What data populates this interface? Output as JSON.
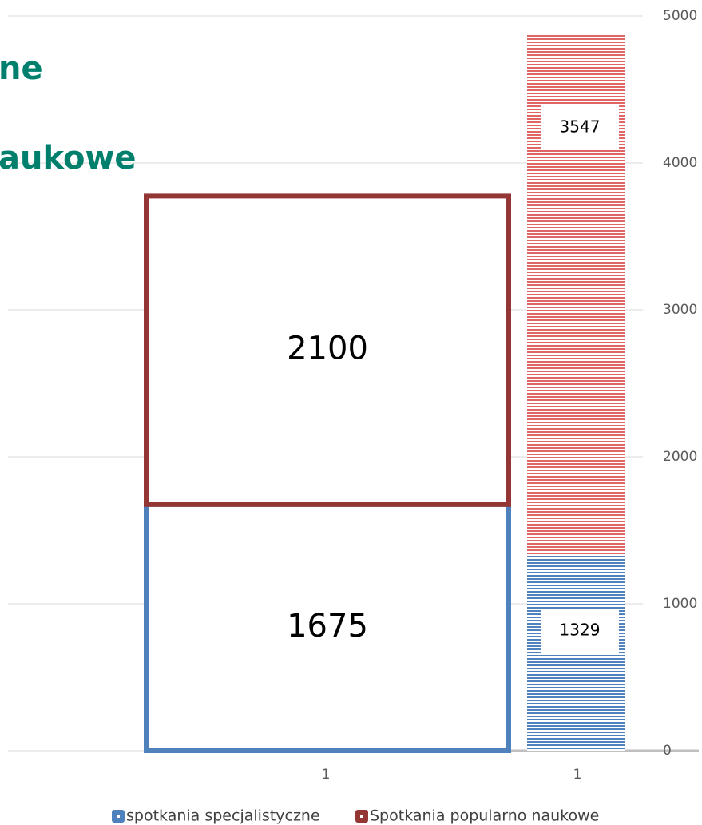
{
  "chart_data": [
    {
      "type": "bar",
      "style": "outline",
      "stacked": true,
      "title": [
        "ne",
        "aukowe"
      ],
      "categories": [
        "1"
      ],
      "series": [
        {
          "name": "spotkania specjalistyczne",
          "color": "#4f81bd",
          "values": [
            1675
          ]
        },
        {
          "name": "Spotkania popularno naukowe",
          "color": "#943634",
          "values": [
            2100
          ]
        }
      ],
      "ylim": [
        0,
        5000
      ],
      "legend": "bottom"
    },
    {
      "type": "bar",
      "style": "hatched",
      "stacked": true,
      "categories": [
        "1"
      ],
      "series": [
        {
          "color": "#4f81bd",
          "values": [
            1329
          ]
        },
        {
          "color": "#e06666",
          "values": [
            3547
          ]
        }
      ],
      "ylim": [
        0,
        5000
      ],
      "yticks": [
        0,
        1000,
        2000,
        3000,
        4000,
        5000
      ],
      "grid": true
    }
  ]
}
